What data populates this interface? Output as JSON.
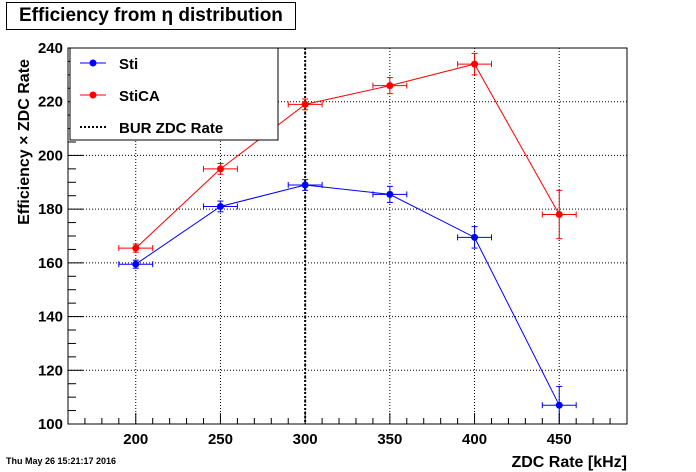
{
  "chart_data": {
    "type": "scatter",
    "title": "Efficiency from η distribution",
    "xlabel": "ZDC Rate [kHz]",
    "ylabel": "Efficiency × ZDC Rate",
    "xlim": [
      160,
      490
    ],
    "ylim": [
      100,
      240
    ],
    "x_ticks": [
      200,
      250,
      300,
      350,
      400,
      450
    ],
    "y_ticks": [
      100,
      120,
      140,
      160,
      180,
      200,
      220,
      240
    ],
    "grid": true,
    "legend_position": "top-left",
    "series": [
      {
        "name": "Sti",
        "color": "#0000ff",
        "marker": "circle",
        "x": [
          200,
          250,
          300,
          350,
          400,
          450
        ],
        "y": [
          159.5,
          181,
          189,
          185.5,
          169.5,
          107
        ],
        "x_err": [
          10,
          10,
          10,
          10,
          10,
          10
        ],
        "y_err": [
          1.5,
          2,
          2,
          3,
          4,
          7
        ]
      },
      {
        "name": "StiCA",
        "color": "#ff0000",
        "marker": "circle",
        "x": [
          200,
          250,
          300,
          350,
          400,
          450
        ],
        "y": [
          165.5,
          195,
          219,
          226,
          234,
          178
        ],
        "x_err": [
          10,
          10,
          10,
          10,
          10,
          10
        ],
        "y_err": [
          1.5,
          2,
          2,
          3,
          4,
          9
        ]
      }
    ],
    "reference_line": {
      "name": "BUR ZDC Rate",
      "x": 300,
      "style": "dotted",
      "color": "#000000"
    }
  },
  "footer": {
    "timestamp": "Thu May 26 15:21:17 2016"
  }
}
